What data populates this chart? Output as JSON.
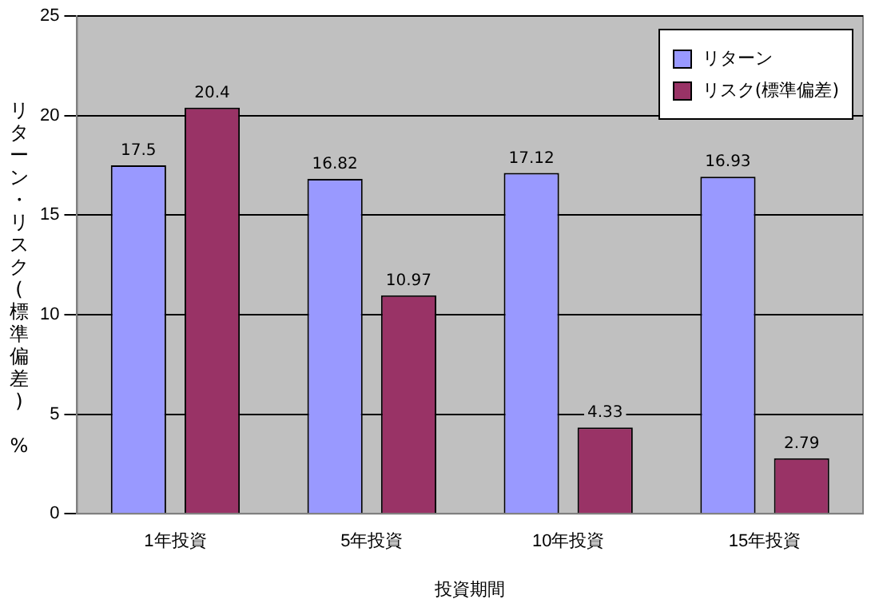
{
  "chart_data": {
    "type": "bar",
    "xlabel": "投資期間",
    "ylabel": "リターン・リスク(標準偏差) %",
    "categories": [
      "1年投資",
      "5年投資",
      "10年投資",
      "15年投資"
    ],
    "series": [
      {
        "name": "リターン",
        "color": "#9999ff",
        "values": [
          17.5,
          16.82,
          17.12,
          16.93
        ]
      },
      {
        "name": "リスク(標準偏差)",
        "color": "#993366",
        "values": [
          20.4,
          10.97,
          4.33,
          2.79
        ]
      }
    ],
    "ylim": [
      0,
      25
    ],
    "yticks": [
      0,
      5,
      10,
      15,
      20,
      25
    ],
    "grid": "y",
    "legend": "top right",
    "data_labels": true
  }
}
